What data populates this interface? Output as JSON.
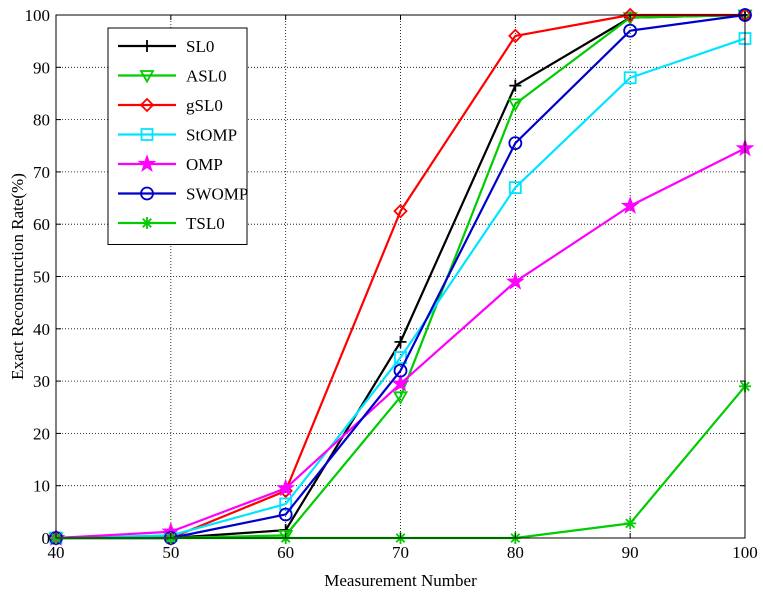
{
  "chart_data": {
    "type": "line",
    "title": "",
    "xlabel": "Measurement Number",
    "ylabel": "Exact Reconstruction Rate(%)",
    "x": [
      40,
      50,
      60,
      70,
      80,
      90,
      100
    ],
    "xlim": [
      40,
      100
    ],
    "ylim": [
      0,
      100
    ],
    "xticks": [
      "40",
      "50",
      "60",
      "70",
      "80",
      "90",
      "100"
    ],
    "yticks": [
      "0",
      "10",
      "20",
      "30",
      "40",
      "50",
      "60",
      "70",
      "80",
      "90",
      "100"
    ],
    "grid": true,
    "legend_position": "top-left",
    "series": [
      {
        "name": "SL0",
        "color": "#000000",
        "marker": "plus",
        "values": [
          0,
          0,
          1.5,
          37.5,
          86.5,
          99.5,
          100
        ]
      },
      {
        "name": "ASL0",
        "color": "#00cc00",
        "marker": "triangle-down",
        "values": [
          0,
          0,
          0.5,
          27,
          83,
          99.5,
          100
        ]
      },
      {
        "name": "gSL0",
        "color": "#ff0000",
        "marker": "diamond",
        "values": [
          0,
          0,
          9,
          62.5,
          96,
          100,
          100
        ]
      },
      {
        "name": "StOMP",
        "color": "#00e5ff",
        "marker": "square",
        "values": [
          0,
          0.5,
          6.5,
          34.5,
          67,
          88,
          95.5
        ]
      },
      {
        "name": "OMP",
        "color": "#ff00ff",
        "marker": "star",
        "values": [
          0,
          1.2,
          9.5,
          29.5,
          49,
          63.5,
          74.5
        ]
      },
      {
        "name": "SWOMP",
        "color": "#0000cc",
        "marker": "circle",
        "values": [
          0,
          0,
          4.5,
          32,
          75.5,
          97,
          100
        ]
      },
      {
        "name": "TSL0",
        "color": "#00cc00",
        "marker": "asterisk",
        "values": [
          0,
          0,
          0,
          0,
          0,
          2.8,
          29
        ]
      }
    ]
  }
}
